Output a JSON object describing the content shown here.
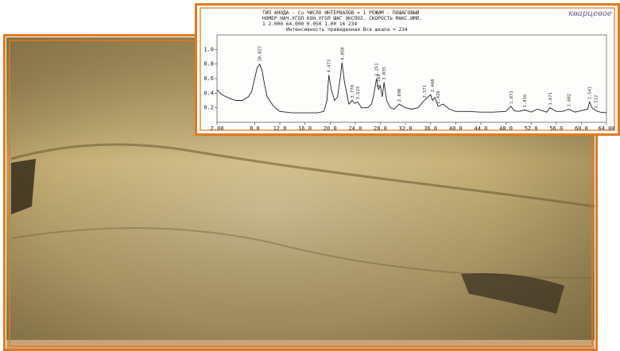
{
  "inset": {
    "header": [
      "ТИП АНОДА - Cu     ЧИСЛО ИНТЕРВАЛОВ = 1     РЕЖИМ - ПОШАГОВЫЙ",
      "НОМЕР  НАЧ.УГОЛ  КОН.УГОЛ   ШАГ   ЭКСПОЗ.  СКОРОСТЬ  МАКС.ИМП.",
      "1      2.000    64.000   0.050   1.00      16       234",
      "Интенсивность приведенная          Вся шкала =   234"
    ],
    "note": "кварцевое"
  },
  "chart_data": {
    "type": "line",
    "x": [
      2,
      2.5,
      3,
      4,
      5,
      6,
      7,
      7.5,
      8,
      8.4,
      8.8,
      9.2,
      9.6,
      10,
      11,
      12,
      14,
      16,
      18,
      19,
      19.5,
      19.8,
      20.2,
      20.7,
      21.2,
      21.6,
      21.9,
      22.3,
      23,
      23.5,
      23.9,
      24.4,
      25,
      26,
      26.6,
      27,
      27.4,
      27.7,
      28,
      28.3,
      28.6,
      29,
      29.6,
      30.2,
      31,
      32,
      33,
      34,
      35,
      35.6,
      36,
      36.3,
      36.7,
      37.2,
      38,
      39,
      40,
      42,
      44,
      46,
      48,
      48.8,
      49.3,
      50,
      51,
      52,
      53,
      54.5,
      55,
      56,
      57,
      58,
      59,
      60,
      61,
      61.3,
      61.7,
      62.3,
      63,
      64
    ],
    "series": [
      {
        "color": "#222222",
        "values": [
          0.45,
          0.4,
          0.37,
          0.33,
          0.3,
          0.3,
          0.35,
          0.42,
          0.6,
          0.75,
          0.8,
          0.7,
          0.5,
          0.35,
          0.22,
          0.15,
          0.13,
          0.13,
          0.13,
          0.15,
          0.3,
          0.65,
          0.45,
          0.3,
          0.35,
          0.6,
          0.82,
          0.55,
          0.25,
          0.3,
          0.26,
          0.28,
          0.2,
          0.2,
          0.25,
          0.4,
          0.6,
          0.45,
          0.5,
          0.35,
          0.55,
          0.3,
          0.2,
          0.18,
          0.25,
          0.2,
          0.18,
          0.2,
          0.3,
          0.35,
          0.38,
          0.3,
          0.34,
          0.22,
          0.25,
          0.18,
          0.15,
          0.15,
          0.14,
          0.14,
          0.15,
          0.22,
          0.16,
          0.15,
          0.17,
          0.14,
          0.18,
          0.14,
          0.2,
          0.15,
          0.15,
          0.18,
          0.14,
          0.16,
          0.18,
          0.28,
          0.2,
          0.16,
          0.14,
          0.13
        ]
      }
    ],
    "xlim": [
      2,
      64
    ],
    "xticks": [
      {
        "value": 2,
        "label": "2.00"
      },
      {
        "value": 8,
        "label": "8.0"
      },
      {
        "value": 12,
        "label": "12.0"
      },
      {
        "value": 16,
        "label": "16.0"
      },
      {
        "value": 20,
        "label": "20.0"
      },
      {
        "value": 24,
        "label": "24.0"
      },
      {
        "value": 28,
        "label": "28.0"
      },
      {
        "value": 32,
        "label": "32.0"
      },
      {
        "value": 36,
        "label": "36.0"
      },
      {
        "value": 40,
        "label": "40.0"
      },
      {
        "value": 44,
        "label": "44.0"
      },
      {
        "value": 48,
        "label": "48.0"
      },
      {
        "value": 52,
        "label": "52.0"
      },
      {
        "value": 56,
        "label": "56.0"
      },
      {
        "value": 60,
        "label": "60.0"
      },
      {
        "value": 64,
        "label": "64.00"
      }
    ],
    "ylim": [
      0,
      1.2
    ],
    "yticks": [
      0.2,
      0.4,
      0.6,
      0.8,
      {
        "value": 1,
        "label": "1.0"
      }
    ],
    "annotations": [
      {
        "x": 8.8,
        "y": 0.8,
        "text": "10.027"
      },
      {
        "x": 19.8,
        "y": 0.65,
        "text": "4.473"
      },
      {
        "x": 21.9,
        "y": 0.82,
        "text": "4.050"
      },
      {
        "x": 23.5,
        "y": 0.3,
        "text": "3.778"
      },
      {
        "x": 24.4,
        "y": 0.28,
        "text": "3.633"
      },
      {
        "x": 27.4,
        "y": 0.6,
        "text": "3.251"
      },
      {
        "x": 27.7,
        "y": 0.45,
        "text": "3.169"
      },
      {
        "x": 28.6,
        "y": 0.55,
        "text": "3.035"
      },
      {
        "x": 31,
        "y": 0.25,
        "text": "2.890"
      },
      {
        "x": 35,
        "y": 0.3,
        "text": "2.571"
      },
      {
        "x": 36.3,
        "y": 0.38,
        "text": "2.460"
      },
      {
        "x": 37.2,
        "y": 0.22,
        "text": "2.426"
      },
      {
        "x": 48.8,
        "y": 0.22,
        "text": "1.871"
      },
      {
        "x": 51,
        "y": 0.17,
        "text": "1.816"
      },
      {
        "x": 55,
        "y": 0.2,
        "text": "1.671"
      },
      {
        "x": 58,
        "y": 0.18,
        "text": "1.602"
      },
      {
        "x": 61.3,
        "y": 0.28,
        "text": "1.541"
      },
      {
        "x": 62.3,
        "y": 0.16,
        "text": "1.512"
      }
    ]
  }
}
